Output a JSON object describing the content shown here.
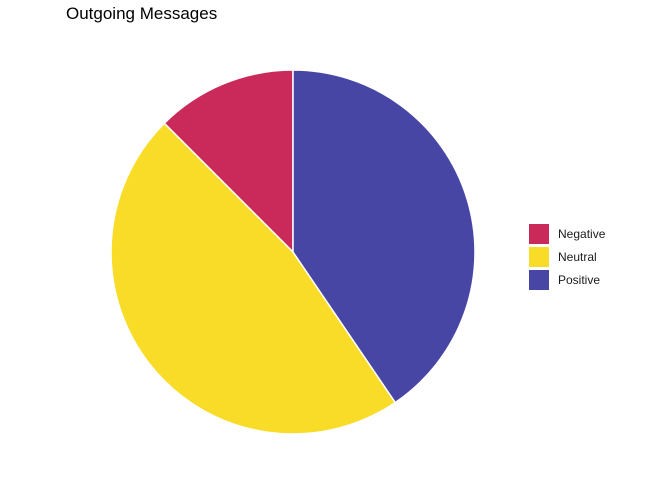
{
  "chart_data": {
    "type": "pie",
    "title": "Outgoing Messages",
    "categories": [
      "Negative",
      "Neutral",
      "Positive"
    ],
    "values": [
      12.5,
      47.0,
      40.5
    ],
    "colors": [
      "#C92A59",
      "#F9DC28",
      "#4846A5"
    ],
    "legend": {
      "position": "right",
      "entries": [
        "Negative",
        "Neutral",
        "Positive"
      ]
    },
    "start": "12 o'clock",
    "direction": "counterclockwise"
  }
}
